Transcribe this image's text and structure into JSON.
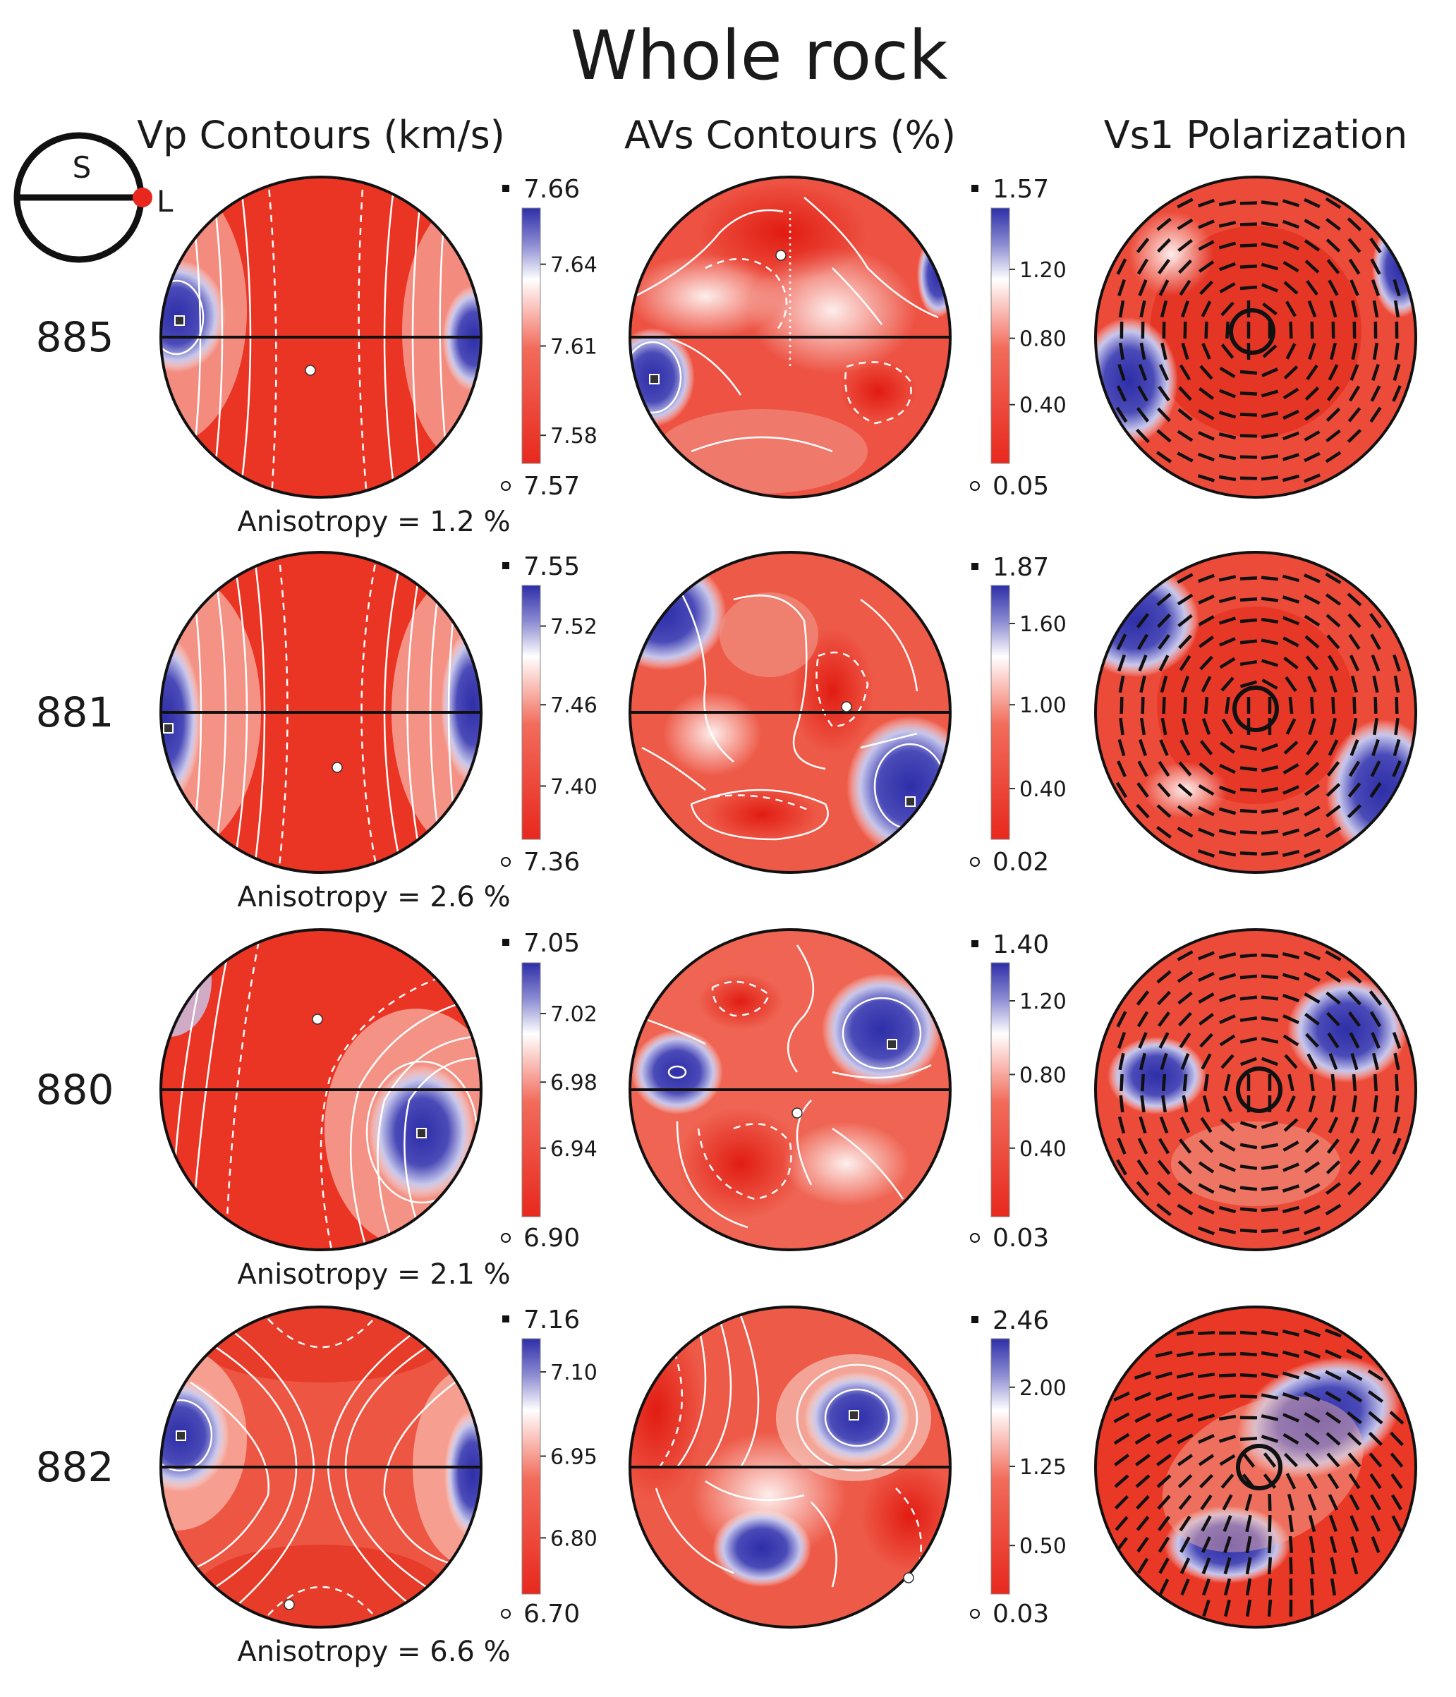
{
  "title": "Whole rock",
  "columns": {
    "vp": "Vp Contours (km/s)",
    "avs": "AVs Contours (%)",
    "vs1": "Vs1 Polarization"
  },
  "legend_symbol": {
    "s": "S",
    "l": "L"
  },
  "colors": {
    "low": "#e8281e",
    "mid": "#ffffff",
    "high": "#2e2ea8",
    "contour": "#ffffff",
    "frame": "#111111"
  },
  "samples": [
    {
      "id": "885",
      "vp": {
        "max": "7.66",
        "min": "7.57",
        "ticks": [
          "7.64",
          "7.61",
          "7.58"
        ],
        "tick_levels": [
          0.78,
          0.46,
          0.11
        ]
      },
      "avs": {
        "max": "1.57",
        "min": "0.05",
        "ticks": [
          "1.20",
          "0.80",
          "0.40"
        ],
        "tick_levels": [
          0.76,
          0.49,
          0.23
        ]
      },
      "anisotropy": "Anisotropy = 1.2 %"
    },
    {
      "id": "881",
      "vp": {
        "max": "7.55",
        "min": "7.36",
        "ticks": [
          "7.52",
          "7.46",
          "7.40"
        ],
        "tick_levels": [
          0.84,
          0.53,
          0.21
        ]
      },
      "avs": {
        "max": "1.87",
        "min": "0.02",
        "ticks": [
          "1.60",
          "1.00",
          "0.40"
        ],
        "tick_levels": [
          0.85,
          0.53,
          0.2
        ]
      },
      "anisotropy": "Anisotropy = 2.6 %"
    },
    {
      "id": "880",
      "vp": {
        "max": "7.05",
        "min": "6.90",
        "ticks": [
          "7.02",
          "6.98",
          "6.94"
        ],
        "tick_levels": [
          0.8,
          0.53,
          0.27
        ]
      },
      "avs": {
        "max": "1.40",
        "min": "0.03",
        "ticks": [
          "1.20",
          "0.80",
          "0.40"
        ],
        "tick_levels": [
          0.85,
          0.56,
          0.27
        ]
      },
      "anisotropy": "Anisotropy = 2.1 %"
    },
    {
      "id": "882",
      "vp": {
        "max": "7.16",
        "min": "6.70",
        "ticks": [
          "7.10",
          "6.95",
          "6.80"
        ],
        "tick_levels": [
          0.87,
          0.54,
          0.22
        ]
      },
      "avs": {
        "max": "2.46",
        "min": "0.03",
        "ticks": [
          "2.00",
          "1.25",
          "0.50"
        ],
        "tick_levels": [
          0.81,
          0.5,
          0.19
        ]
      },
      "anisotropy": "Anisotropy = 6.6 %"
    }
  ]
}
